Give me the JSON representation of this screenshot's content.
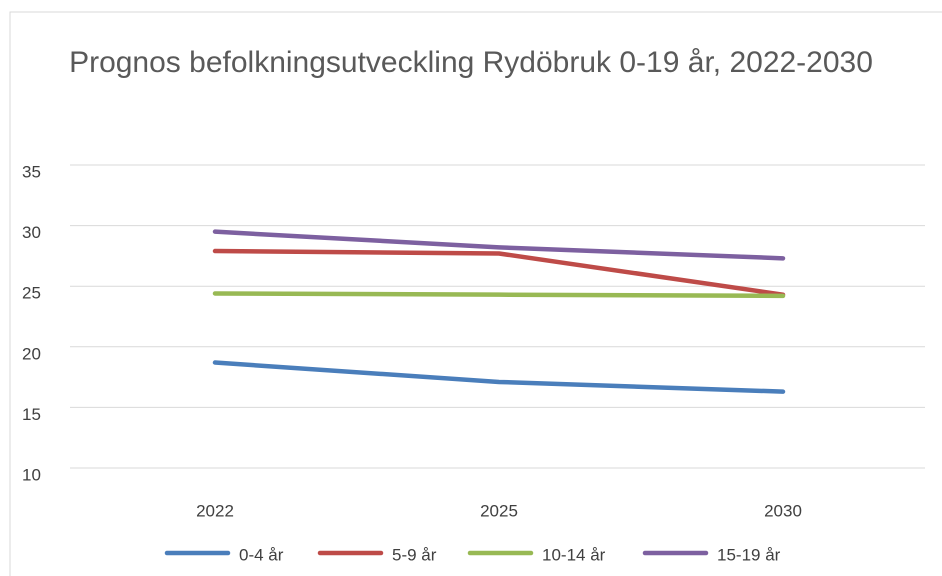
{
  "chart_data": {
    "type": "line",
    "title": "Prognos befolkningsutveckling Rydöbruk 0-19 år, 2022-2030",
    "categories": [
      "2022",
      "2025",
      "2030"
    ],
    "series": [
      {
        "name": "0-4 år",
        "color": "#4a7ebb",
        "values": [
          18.7,
          17.1,
          16.3
        ]
      },
      {
        "name": "5-9 år",
        "color": "#be4b48",
        "values": [
          27.9,
          27.7,
          24.3
        ]
      },
      {
        "name": "10-14 år",
        "color": "#98b954",
        "values": [
          24.4,
          24.3,
          24.2
        ]
      },
      {
        "name": "15-19 år",
        "color": "#7d60a0",
        "values": [
          29.5,
          28.2,
          27.3
        ]
      }
    ],
    "ylim": [
      10,
      35
    ],
    "yticks": [
      10,
      15,
      20,
      25,
      30,
      35
    ],
    "grid": true,
    "legend": "bottom"
  }
}
